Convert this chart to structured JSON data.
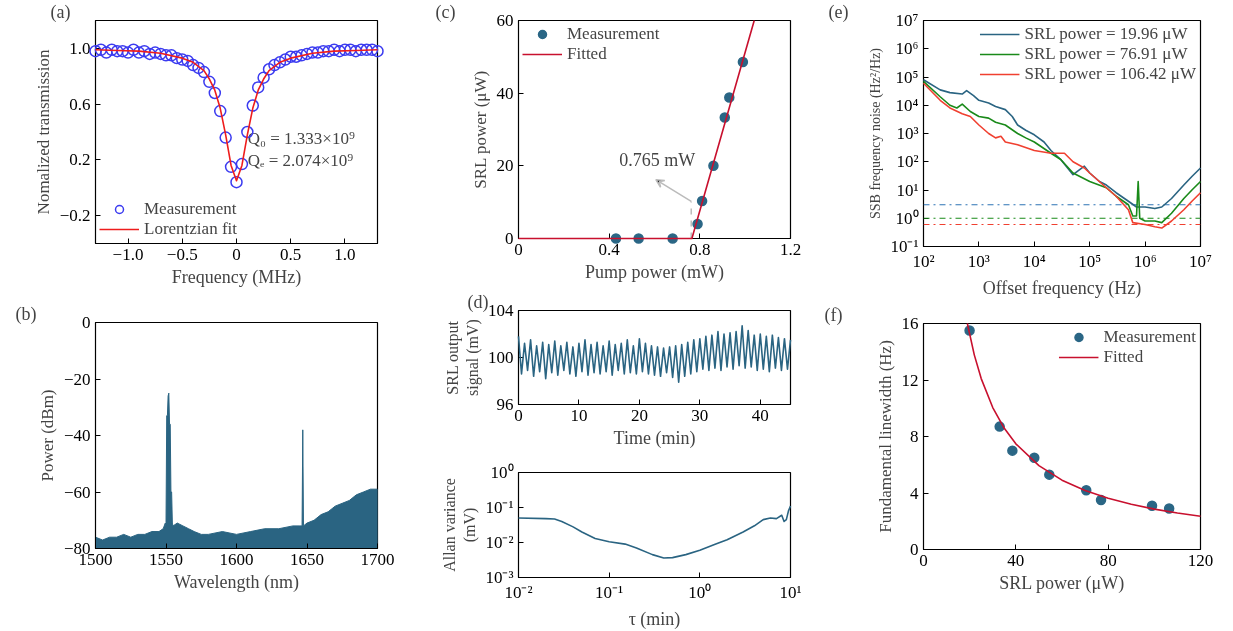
{
  "chart_data": [
    {
      "type": "scatter",
      "title": "(a)",
      "xlabel": "Frequency (MHz)",
      "ylabel": "Nomalized transmission",
      "xlim": [
        -1.3,
        1.3
      ],
      "ylim": [
        -0.4,
        1.2
      ],
      "xticks": [
        {
          "value": -1.0,
          "label": "−1.0"
        },
        {
          "value": -0.5,
          "label": "−0.5"
        },
        0,
        0.5,
        {
          "value": 1,
          "label": "1.0"
        }
      ],
      "yticks": [
        {
          "value": -0.2,
          "label": "−0.2"
        },
        0.2,
        0.6,
        {
          "value": 1,
          "label": "1.0"
        }
      ],
      "legend": "bottom left",
      "annotations": [
        "Q₀ = 1.333×10⁹",
        "Qₑ = 2.074×10⁹"
      ],
      "series": [
        {
          "name": "Measurement",
          "marker": "circle",
          "color": "#3b3bf0",
          "x": [
            -1.3,
            -1.25,
            -1.2,
            -1.15,
            -1.1,
            -1.05,
            -1.0,
            -0.95,
            -0.9,
            -0.85,
            -0.8,
            -0.75,
            -0.7,
            -0.65,
            -0.6,
            -0.55,
            -0.5,
            -0.45,
            -0.4,
            -0.35,
            -0.3,
            -0.25,
            -0.2,
            -0.15,
            -0.1,
            -0.05,
            0,
            0.05,
            0.1,
            0.15,
            0.2,
            0.25,
            0.3,
            0.35,
            0.4,
            0.45,
            0.5,
            0.55,
            0.6,
            0.65,
            0.7,
            0.75,
            0.8,
            0.85,
            0.9,
            0.95,
            1.0,
            1.05,
            1.1,
            1.15,
            1.2,
            1.25,
            1.3
          ],
          "values": [
            0.98,
            0.99,
            0.97,
            0.99,
            0.98,
            0.98,
            0.97,
            0.99,
            0.97,
            0.98,
            0.96,
            0.97,
            0.96,
            0.95,
            0.95,
            0.93,
            0.92,
            0.91,
            0.88,
            0.86,
            0.83,
            0.76,
            0.68,
            0.55,
            0.36,
            0.15,
            0.04,
            0.17,
            0.4,
            0.59,
            0.72,
            0.79,
            0.85,
            0.88,
            0.9,
            0.92,
            0.94,
            0.94,
            0.95,
            0.96,
            0.97,
            0.97,
            0.98,
            0.98,
            0.99,
            0.98,
            0.99,
            0.99,
            0.98,
            0.99,
            0.99,
            0.99,
            0.98
          ]
        },
        {
          "name": "Lorentzian fit",
          "type": "line",
          "color": "#ee1c1c",
          "x": [
            -1.3,
            -1.1,
            -0.9,
            -0.7,
            -0.5,
            -0.4,
            -0.3,
            -0.25,
            -0.2,
            -0.15,
            -0.1,
            -0.05,
            0,
            0.05,
            0.1,
            0.15,
            0.2,
            0.25,
            0.3,
            0.4,
            0.5,
            0.7,
            0.9,
            1.1,
            1.3
          ],
          "values": [
            0.99,
            0.985,
            0.98,
            0.965,
            0.93,
            0.9,
            0.84,
            0.78,
            0.7,
            0.57,
            0.38,
            0.16,
            0.05,
            0.16,
            0.38,
            0.57,
            0.7,
            0.78,
            0.84,
            0.9,
            0.93,
            0.965,
            0.98,
            0.985,
            0.99
          ]
        }
      ]
    },
    {
      "type": "area",
      "title": "(b)",
      "xlabel": "Wavelength (nm)",
      "ylabel": "Power (dBm)",
      "xlim": [
        1500,
        1700
      ],
      "ylim": [
        -80,
        0
      ],
      "xticks": [
        1500,
        1550,
        1600,
        1650,
        1700
      ],
      "yticks": [
        {
          "value": -80,
          "label": "−80"
        },
        {
          "value": -60,
          "label": "−60"
        },
        {
          "value": -40,
          "label": "−40"
        },
        {
          "value": -20,
          "label": "−20"
        },
        0
      ],
      "series": [
        {
          "color": "#2a6482",
          "x": [
            1500,
            1505,
            1510,
            1515,
            1520,
            1525,
            1530,
            1535,
            1540,
            1545,
            1548,
            1549.5,
            1550,
            1550.5,
            1551,
            1551.5,
            1552,
            1552.5,
            1553,
            1553.5,
            1554,
            1554.5,
            1555,
            1558,
            1562,
            1566,
            1570,
            1575,
            1580,
            1590,
            1600,
            1610,
            1620,
            1630,
            1640,
            1645,
            1646.5,
            1647,
            1647.5,
            1650,
            1655,
            1660,
            1665,
            1670,
            1675,
            1680,
            1685,
            1690,
            1695,
            1700
          ],
          "values": [
            -76,
            -77,
            -76,
            -76,
            -75,
            -76,
            -75,
            -75,
            -74,
            -74,
            -73,
            -71,
            -72,
            -33,
            -33,
            -26,
            -25,
            -36,
            -36,
            -60,
            -60,
            -71,
            -72,
            -71,
            -72,
            -73,
            -74,
            -75,
            -75,
            -74,
            -75,
            -74,
            -73,
            -73,
            -72,
            -72,
            -72,
            -38,
            -72,
            -71,
            -70,
            -68,
            -67,
            -65,
            -64,
            -63,
            -61,
            -60,
            -59,
            -59
          ]
        }
      ]
    },
    {
      "type": "scatter",
      "title": "(c)",
      "xlabel": "Pump power (mW)",
      "ylabel": "SRL power (μW)",
      "xlim": [
        0,
        1.2
      ],
      "ylim": [
        0,
        60
      ],
      "xticks": [
        0,
        0.4,
        0.8,
        1.2
      ],
      "yticks": [
        0,
        20,
        40,
        60
      ],
      "legend": "top left",
      "annotations": [
        "0.765 mW"
      ],
      "series": [
        {
          "name": "Measurement",
          "marker": "circle",
          "color": "#2a6685",
          "x": [
            0.43,
            0.53,
            0.68,
            0.79,
            0.81,
            0.86,
            0.91,
            0.93,
            0.99
          ],
          "values": [
            0,
            0,
            0,
            4,
            10.3,
            20,
            33.3,
            38.8,
            48.6
          ]
        },
        {
          "name": "Fitted",
          "type": "line",
          "color": "#c8102e",
          "x": [
            0,
            0.765,
            1.04
          ],
          "values": [
            0,
            0,
            60
          ]
        }
      ]
    },
    {
      "type": "line",
      "title": "(d)",
      "xlabel": "Time (min)",
      "ylabel": "SRL output\nsignal (mV)",
      "xlim": [
        0,
        45
      ],
      "ylim": [
        96,
        104
      ],
      "xticks": [
        0,
        10,
        20,
        30,
        40
      ],
      "yticks": [
        96,
        100,
        104
      ],
      "series": [
        {
          "color": "#2a6482",
          "x": [
            0,
            0.5,
            1,
            1.5,
            2,
            2.5,
            3,
            3.5,
            4,
            4.5,
            5,
            5.5,
            6,
            6.5,
            7,
            7.5,
            8,
            8.5,
            9,
            9.5,
            10,
            10.5,
            11,
            11.5,
            12,
            12.5,
            13,
            13.5,
            14,
            14.5,
            15,
            15.5,
            16,
            16.5,
            17,
            17.5,
            18,
            18.5,
            19,
            19.5,
            20,
            20.5,
            21,
            21.5,
            22,
            22.5,
            23,
            23.5,
            24,
            24.5,
            25,
            25.5,
            26,
            26.5,
            27,
            27.5,
            28,
            28.5,
            29,
            29.5,
            30,
            30.5,
            31,
            31.5,
            32,
            32.5,
            33,
            33.5,
            34,
            34.5,
            35,
            35.5,
            36,
            36.5,
            37,
            37.5,
            38,
            38.5,
            39,
            39.5,
            40,
            40.5,
            41,
            41.5,
            42,
            42.5,
            43,
            43.5,
            44,
            44.5,
            45
          ],
          "values": [
            101.8,
            98.6,
            101.2,
            98.9,
            101.5,
            98.4,
            101.0,
            98.8,
            101.3,
            98.2,
            101.1,
            98.7,
            101.4,
            98.5,
            101.0,
            98.9,
            101.3,
            98.6,
            100.9,
            98.4,
            101.2,
            98.8,
            101.5,
            98.5,
            101.1,
            98.7,
            101.3,
            98.6,
            101.0,
            98.8,
            101.4,
            98.5,
            101.1,
            98.9,
            101.2,
            98.6,
            101.5,
            98.7,
            101.0,
            98.6,
            101.6,
            98.8,
            101.2,
            98.6,
            101.0,
            98.5,
            100.9,
            98.4,
            100.8,
            98.7,
            100.9,
            98.3,
            101.0,
            97.9,
            101.1,
            98.4,
            101.3,
            98.6,
            101.5,
            98.8,
            101.6,
            99.0,
            101.8,
            98.9,
            101.9,
            99.1,
            102.2,
            98.9,
            102.0,
            99.2,
            102.1,
            99.0,
            102.2,
            99.3,
            102.7,
            99.1,
            102.3,
            99.2,
            101.9,
            98.9,
            102.0,
            99.0,
            101.8,
            98.8,
            101.9,
            99.1,
            101.7,
            98.9,
            101.6,
            99.0,
            101.5
          ]
        }
      ]
    },
    {
      "type": "line",
      "xlabel": "τ (min)",
      "ylabel": "Allan variance\n(mV)",
      "log": "xy",
      "xlim": [
        0.01,
        10
      ],
      "ylim": [
        0.001,
        1
      ],
      "xticks": [
        {
          "value": 0.01,
          "label": "10⁻²"
        },
        {
          "value": 0.1,
          "label": "10⁻¹"
        },
        {
          "value": 1,
          "label": "10⁰"
        },
        {
          "value": 10,
          "label": "10¹"
        }
      ],
      "yticks": [
        {
          "value": 0.001,
          "label": "10⁻³"
        },
        {
          "value": 0.01,
          "label": "10⁻²"
        },
        {
          "value": 0.1,
          "label": "10⁻¹"
        },
        {
          "value": 1,
          "label": "10⁰"
        }
      ],
      "series": [
        {
          "color": "#2a6482",
          "x": [
            0.01,
            0.02,
            0.025,
            0.03,
            0.04,
            0.05,
            0.07,
            0.1,
            0.15,
            0.2,
            0.3,
            0.4,
            0.5,
            0.7,
            1.0,
            1.5,
            2,
            3,
            4,
            5,
            6,
            7,
            8,
            8.5,
            9,
            9.5,
            10
          ],
          "values": [
            0.05,
            0.048,
            0.047,
            0.04,
            0.028,
            0.02,
            0.013,
            0.0105,
            0.009,
            0.007,
            0.0045,
            0.0036,
            0.0037,
            0.0045,
            0.006,
            0.009,
            0.012,
            0.02,
            0.03,
            0.045,
            0.05,
            0.048,
            0.06,
            0.04,
            0.045,
            0.08,
            0.11
          ]
        }
      ]
    },
    {
      "type": "line",
      "title": "(e)",
      "xlabel": "Offset frequency (Hz)",
      "ylabel": "SSB frequency noise (Hz²/Hz)",
      "log": "xy",
      "xlim": [
        100,
        10000000
      ],
      "ylim": [
        0.1,
        10000000
      ],
      "xticks": [
        {
          "value": 100,
          "label": "10²"
        },
        {
          "value": 1000,
          "label": "10³"
        },
        {
          "value": 10000,
          "label": "10⁴"
        },
        {
          "value": 100000,
          "label": "10⁵"
        },
        {
          "value": 1000000,
          "label": "10⁶"
        },
        {
          "value": 10000000,
          "label": "10⁷"
        }
      ],
      "yticks": [
        {
          "value": 0.1,
          "label": "10⁻¹"
        },
        {
          "value": 1,
          "label": "10⁰"
        },
        {
          "value": 10,
          "label": "10¹"
        },
        {
          "value": 100,
          "label": "10²"
        },
        {
          "value": 1000,
          "label": "10³"
        },
        {
          "value": 10000,
          "label": "10⁴"
        },
        {
          "value": 100000,
          "label": "10⁵"
        },
        {
          "value": 1000000,
          "label": "10⁶"
        },
        {
          "value": 10000000,
          "label": "10⁷"
        }
      ],
      "legend": "top right",
      "ref_lines": [
        {
          "axis": "y",
          "value": 3.0,
          "color": "#2e74b5",
          "line_style": "dashdot"
        },
        {
          "axis": "y",
          "value": 1.0,
          "color": "#1a8a1a",
          "line_style": "dashdot"
        },
        {
          "axis": "y",
          "value": 0.6,
          "color": "#f04030",
          "line_style": "dashdot"
        }
      ],
      "series": [
        {
          "name": "SRL power = 19.96 μW",
          "color": "#2a6482",
          "x": [
            100,
            200,
            300,
            500,
            600,
            800,
            1000,
            1500,
            2000,
            3000,
            4000,
            5000,
            7000,
            10000,
            15000,
            20000,
            30000,
            50000,
            80000,
            100000,
            150000,
            200000,
            300000,
            500000,
            700000,
            1000000,
            1500000,
            2000000,
            3000000,
            5000000,
            7000000,
            10000000
          ],
          "values": [
            80000,
            35000,
            28000,
            25000,
            33000,
            22000,
            15000,
            12000,
            9000,
            7000,
            4000,
            2000,
            1300,
            900,
            500,
            250,
            120,
            35,
            70,
            40,
            20,
            15,
            8,
            4,
            2.5,
            2.5,
            2.2,
            2.5,
            5,
            15,
            30,
            60
          ]
        },
        {
          "name": "SRL power = 76.91 μW",
          "color": "#1a8a1a",
          "x": [
            100,
            200,
            300,
            400,
            500,
            700,
            1000,
            1500,
            2000,
            3000,
            5000,
            7000,
            10000,
            20000,
            30000,
            50000,
            100000,
            200000,
            300000,
            500000,
            600000,
            700000,
            750000,
            800000,
            1000000,
            1500000,
            2000000,
            3000000,
            5000000,
            7000000,
            10000000
          ],
          "values": [
            70000,
            20000,
            10000,
            8000,
            11000,
            6000,
            4000,
            3500,
            2500,
            2000,
            1000,
            700,
            500,
            200,
            120,
            40,
            20,
            12,
            6,
            3,
            1.2,
            1.2,
            20,
            1.0,
            0.8,
            0.8,
            0.7,
            1.5,
            5,
            10,
            20
          ]
        },
        {
          "name": "SRL power = 106.42 μW",
          "color": "#f04030",
          "x": [
            100,
            200,
            300,
            500,
            700,
            1000,
            1500,
            2000,
            2500,
            3000,
            5000,
            10000,
            20000,
            35000,
            50000,
            80000,
            100000,
            200000,
            300000,
            500000,
            600000,
            1000000,
            1500000,
            2000000,
            3000000,
            5000000,
            7000000,
            10000000
          ],
          "values": [
            60000,
            15000,
            8000,
            5000,
            4000,
            2000,
            1000,
            700,
            800,
            500,
            400,
            250,
            200,
            200,
            100,
            60,
            40,
            12,
            6,
            2,
            0.7,
            0.6,
            0.5,
            0.45,
            0.8,
            2,
            4,
            8
          ]
        }
      ]
    },
    {
      "type": "scatter",
      "title": "(f)",
      "xlabel": "SRL power (μW)",
      "ylabel": "Fundamental linewidth (Hz)",
      "xlim": [
        0,
        120
      ],
      "ylim": [
        0,
        16
      ],
      "xticks": [
        0,
        40,
        80,
        120
      ],
      "yticks": [
        0,
        4,
        8,
        12,
        16
      ],
      "legend": "top right",
      "series": [
        {
          "name": "Measurement",
          "marker": "circle",
          "color": "#2a6685",
          "x": [
            19.96,
            33,
            38.5,
            48,
            54.5,
            70.5,
            76.91,
            99,
            106.42
          ],
          "values": [
            15.5,
            8.7,
            7.0,
            6.5,
            5.3,
            4.2,
            3.5,
            3.1,
            2.9
          ]
        },
        {
          "name": "Fitted",
          "type": "line",
          "color": "#c8102e",
          "x": [
            19,
            22,
            25,
            30,
            35,
            40,
            50,
            60,
            70,
            80,
            90,
            100,
            110,
            120
          ],
          "values": [
            16.0,
            13.78,
            12.1,
            10.05,
            8.58,
            7.48,
            5.94,
            4.91,
            4.18,
            3.63,
            3.2,
            2.86,
            2.58,
            2.35
          ]
        }
      ]
    }
  ]
}
